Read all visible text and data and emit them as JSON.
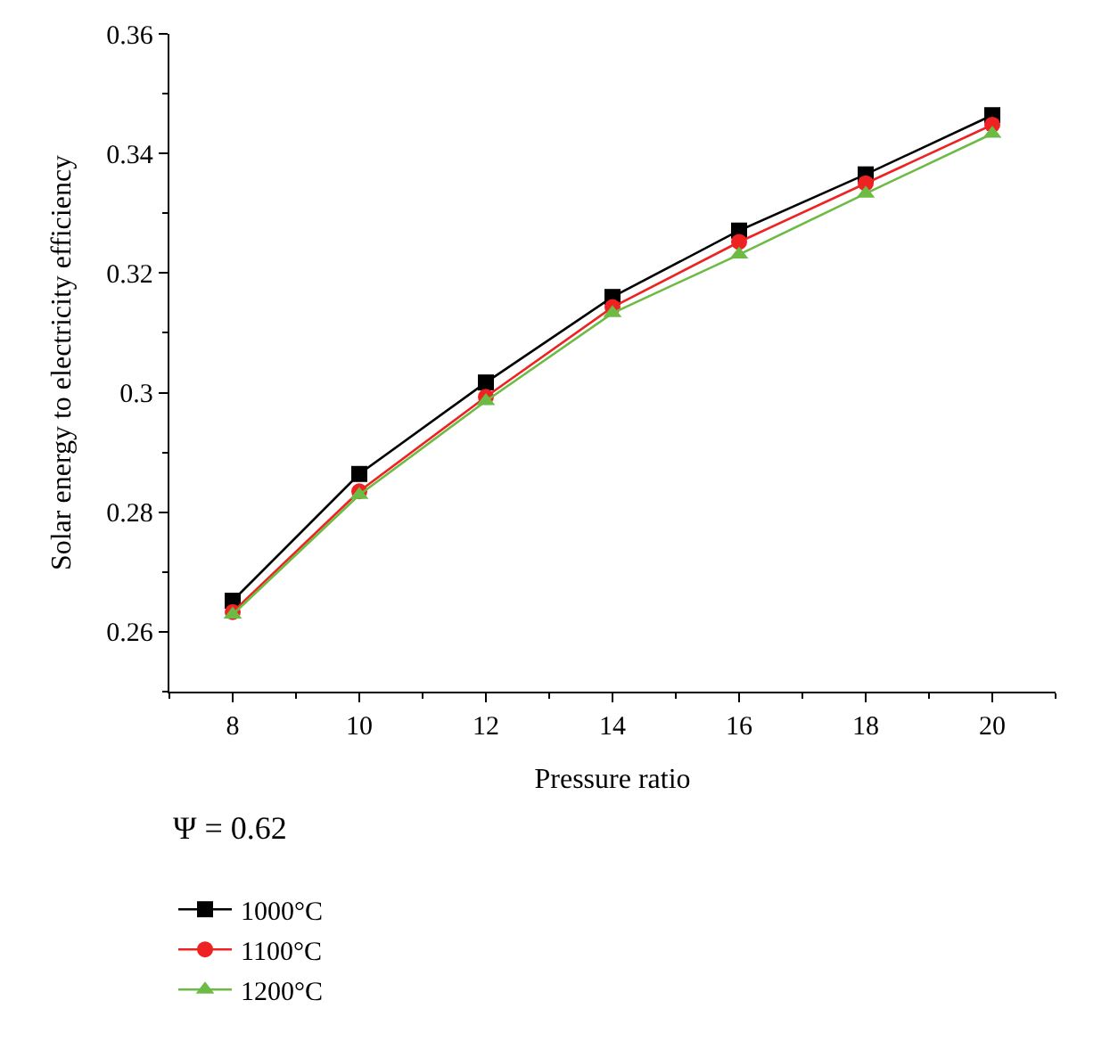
{
  "chart_data": {
    "type": "line",
    "xlabel": "Pressure ratio",
    "ylabel": "Solar energy to electricity efficiency",
    "legend_title": "Ψ = 0.62",
    "x": [
      8,
      10,
      12,
      14,
      16,
      18,
      20
    ],
    "series": [
      {
        "name": "1000°C",
        "color": "#000000",
        "marker": "square",
        "values": [
          0.2652,
          0.2864,
          0.3017,
          0.316,
          0.3271,
          0.3365,
          0.3464
        ]
      },
      {
        "name": "1100°C",
        "color": "#ee2222",
        "marker": "circle",
        "values": [
          0.2633,
          0.2835,
          0.2993,
          0.3143,
          0.3252,
          0.335,
          0.3448
        ]
      },
      {
        "name": "1200°C",
        "color": "#6dbb45",
        "marker": "triangle",
        "values": [
          0.2629,
          0.2829,
          0.2986,
          0.3133,
          0.3231,
          0.3333,
          0.3433
        ]
      }
    ],
    "xlim": [
      7,
      21
    ],
    "xticks": [
      8,
      10,
      12,
      14,
      16,
      18,
      20
    ],
    "ylim": [
      0.25,
      0.36
    ],
    "yticks": [
      0.26,
      0.28,
      0.3,
      0.32,
      0.34,
      0.36
    ],
    "legend": "bottom left",
    "line_style": "solid"
  }
}
